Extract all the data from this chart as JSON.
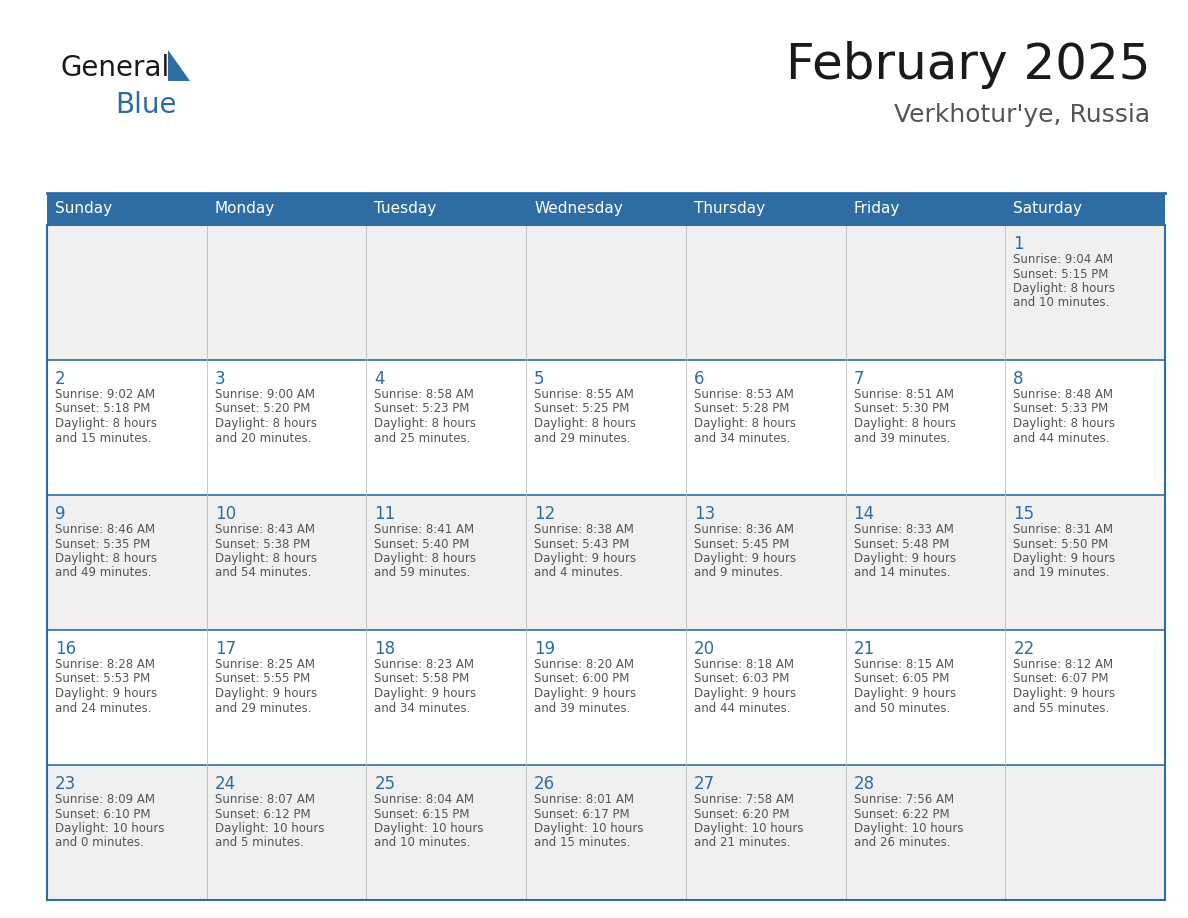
{
  "title": "February 2025",
  "subtitle": "Verkhotur'ye, Russia",
  "header_bg": "#2E6DA4",
  "header_text_color": "#FFFFFF",
  "cell_bg_light": "#F0F0F0",
  "cell_bg_white": "#FFFFFF",
  "text_color": "#555555",
  "day_num_color": "#2E6DA4",
  "border_color": "#2E6DA4",
  "line_color": "#AAAAAA",
  "days_of_week": [
    "Sunday",
    "Monday",
    "Tuesday",
    "Wednesday",
    "Thursday",
    "Friday",
    "Saturday"
  ],
  "weeks": [
    [
      {
        "day": null,
        "sunrise": null,
        "sunset": null,
        "daylight_hours": null,
        "daylight_mins": null
      },
      {
        "day": null,
        "sunrise": null,
        "sunset": null,
        "daylight_hours": null,
        "daylight_mins": null
      },
      {
        "day": null,
        "sunrise": null,
        "sunset": null,
        "daylight_hours": null,
        "daylight_mins": null
      },
      {
        "day": null,
        "sunrise": null,
        "sunset": null,
        "daylight_hours": null,
        "daylight_mins": null
      },
      {
        "day": null,
        "sunrise": null,
        "sunset": null,
        "daylight_hours": null,
        "daylight_mins": null
      },
      {
        "day": null,
        "sunrise": null,
        "sunset": null,
        "daylight_hours": null,
        "daylight_mins": null
      },
      {
        "day": 1,
        "sunrise": "9:04 AM",
        "sunset": "5:15 PM",
        "daylight_hours": 8,
        "daylight_mins": 10
      }
    ],
    [
      {
        "day": 2,
        "sunrise": "9:02 AM",
        "sunset": "5:18 PM",
        "daylight_hours": 8,
        "daylight_mins": 15
      },
      {
        "day": 3,
        "sunrise": "9:00 AM",
        "sunset": "5:20 PM",
        "daylight_hours": 8,
        "daylight_mins": 20
      },
      {
        "day": 4,
        "sunrise": "8:58 AM",
        "sunset": "5:23 PM",
        "daylight_hours": 8,
        "daylight_mins": 25
      },
      {
        "day": 5,
        "sunrise": "8:55 AM",
        "sunset": "5:25 PM",
        "daylight_hours": 8,
        "daylight_mins": 29
      },
      {
        "day": 6,
        "sunrise": "8:53 AM",
        "sunset": "5:28 PM",
        "daylight_hours": 8,
        "daylight_mins": 34
      },
      {
        "day": 7,
        "sunrise": "8:51 AM",
        "sunset": "5:30 PM",
        "daylight_hours": 8,
        "daylight_mins": 39
      },
      {
        "day": 8,
        "sunrise": "8:48 AM",
        "sunset": "5:33 PM",
        "daylight_hours": 8,
        "daylight_mins": 44
      }
    ],
    [
      {
        "day": 9,
        "sunrise": "8:46 AM",
        "sunset": "5:35 PM",
        "daylight_hours": 8,
        "daylight_mins": 49
      },
      {
        "day": 10,
        "sunrise": "8:43 AM",
        "sunset": "5:38 PM",
        "daylight_hours": 8,
        "daylight_mins": 54
      },
      {
        "day": 11,
        "sunrise": "8:41 AM",
        "sunset": "5:40 PM",
        "daylight_hours": 8,
        "daylight_mins": 59
      },
      {
        "day": 12,
        "sunrise": "8:38 AM",
        "sunset": "5:43 PM",
        "daylight_hours": 9,
        "daylight_mins": 4
      },
      {
        "day": 13,
        "sunrise": "8:36 AM",
        "sunset": "5:45 PM",
        "daylight_hours": 9,
        "daylight_mins": 9
      },
      {
        "day": 14,
        "sunrise": "8:33 AM",
        "sunset": "5:48 PM",
        "daylight_hours": 9,
        "daylight_mins": 14
      },
      {
        "day": 15,
        "sunrise": "8:31 AM",
        "sunset": "5:50 PM",
        "daylight_hours": 9,
        "daylight_mins": 19
      }
    ],
    [
      {
        "day": 16,
        "sunrise": "8:28 AM",
        "sunset": "5:53 PM",
        "daylight_hours": 9,
        "daylight_mins": 24
      },
      {
        "day": 17,
        "sunrise": "8:25 AM",
        "sunset": "5:55 PM",
        "daylight_hours": 9,
        "daylight_mins": 29
      },
      {
        "day": 18,
        "sunrise": "8:23 AM",
        "sunset": "5:58 PM",
        "daylight_hours": 9,
        "daylight_mins": 34
      },
      {
        "day": 19,
        "sunrise": "8:20 AM",
        "sunset": "6:00 PM",
        "daylight_hours": 9,
        "daylight_mins": 39
      },
      {
        "day": 20,
        "sunrise": "8:18 AM",
        "sunset": "6:03 PM",
        "daylight_hours": 9,
        "daylight_mins": 44
      },
      {
        "day": 21,
        "sunrise": "8:15 AM",
        "sunset": "6:05 PM",
        "daylight_hours": 9,
        "daylight_mins": 50
      },
      {
        "day": 22,
        "sunrise": "8:12 AM",
        "sunset": "6:07 PM",
        "daylight_hours": 9,
        "daylight_mins": 55
      }
    ],
    [
      {
        "day": 23,
        "sunrise": "8:09 AM",
        "sunset": "6:10 PM",
        "daylight_hours": 10,
        "daylight_mins": 0
      },
      {
        "day": 24,
        "sunrise": "8:07 AM",
        "sunset": "6:12 PM",
        "daylight_hours": 10,
        "daylight_mins": 5
      },
      {
        "day": 25,
        "sunrise": "8:04 AM",
        "sunset": "6:15 PM",
        "daylight_hours": 10,
        "daylight_mins": 10
      },
      {
        "day": 26,
        "sunrise": "8:01 AM",
        "sunset": "6:17 PM",
        "daylight_hours": 10,
        "daylight_mins": 15
      },
      {
        "day": 27,
        "sunrise": "7:58 AM",
        "sunset": "6:20 PM",
        "daylight_hours": 10,
        "daylight_mins": 21
      },
      {
        "day": 28,
        "sunrise": "7:56 AM",
        "sunset": "6:22 PM",
        "daylight_hours": 10,
        "daylight_mins": 26
      },
      {
        "day": null,
        "sunrise": null,
        "sunset": null,
        "daylight_hours": null,
        "daylight_mins": null
      }
    ]
  ],
  "logo_color1": "#1a1a1a",
  "logo_color2": "#2E6DA4",
  "logo_triangle_color": "#2E6DA4",
  "title_fontsize": 36,
  "subtitle_fontsize": 18,
  "dow_fontsize": 11,
  "day_num_fontsize": 12,
  "cell_text_fontsize": 8.5
}
